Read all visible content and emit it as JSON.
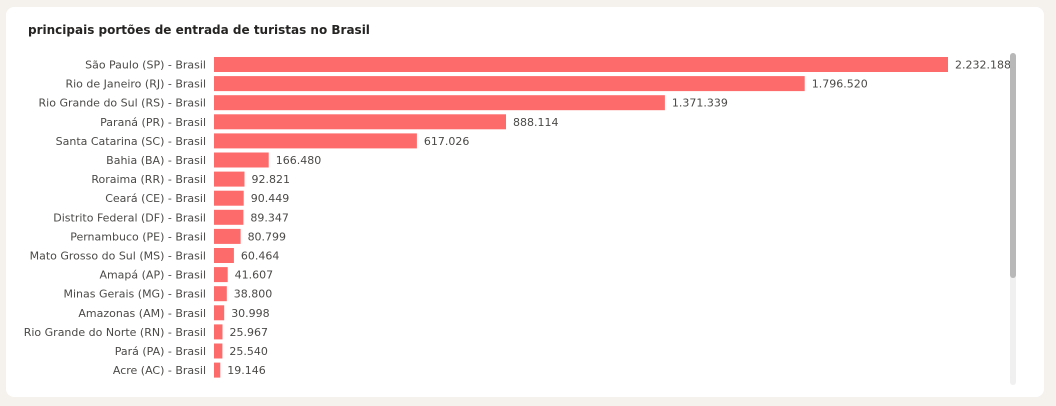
{
  "chart_data": {
    "type": "bar",
    "orientation": "horizontal",
    "title": "principais portões de entrada de turistas no Brasil",
    "categories": [
      "São Paulo (SP) - Brasil",
      "Rio de Janeiro (RJ) - Brasil",
      "Rio Grande do Sul (RS) - Brasil",
      "Paraná (PR) - Brasil",
      "Santa Catarina (SC) - Brasil",
      "Bahia (BA) - Brasil",
      "Roraima (RR) - Brasil",
      "Ceará (CE) - Brasil",
      "Distrito Federal (DF) - Brasil",
      "Pernambuco (PE) - Brasil",
      "Mato Grosso do Sul (MS) - Brasil",
      "Amapá (AP) - Brasil",
      "Minas Gerais (MG) - Brasil",
      "Amazonas (AM) - Brasil",
      "Rio Grande do Norte (RN) - Brasil",
      "Pará (PA) - Brasil",
      "Acre (AC) - Brasil"
    ],
    "values": [
      2232188,
      1796520,
      1371339,
      888114,
      617026,
      166480,
      92821,
      90449,
      89347,
      80799,
      60464,
      41607,
      38800,
      30998,
      25967,
      25540,
      19146
    ],
    "value_labels": [
      "2.232.188",
      "1.796.520",
      "1.371.339",
      "888.114",
      "617.026",
      "166.480",
      "92.821",
      "90.449",
      "89.347",
      "80.799",
      "60.464",
      "41.607",
      "38.800",
      "30.998",
      "25.967",
      "25.540",
      "19.146"
    ],
    "xlim": [
      0,
      2232188
    ],
    "bar_color": "#fd6b6b",
    "grid": false,
    "legend": "none"
  }
}
